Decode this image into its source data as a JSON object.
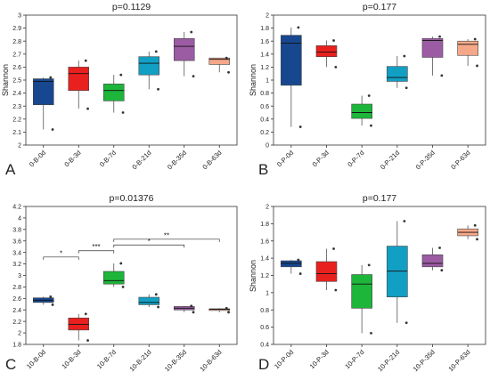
{
  "chart_data": [
    {
      "panel": "A",
      "type": "box",
      "title": "p=0.1129",
      "ylabel": "Shannon",
      "ylim": [
        2,
        3
      ],
      "yticks": [
        "2",
        "2.1",
        "2.2",
        "2.3",
        "2.4",
        "2.5",
        "2.6",
        "2.7",
        "2.8",
        "2.9",
        "3"
      ],
      "categories": [
        "0-B-0d",
        "0-B-3d",
        "0-B-7d",
        "0-B-21d",
        "0-B-35d",
        "0-B-63d"
      ],
      "colors": [
        "#17478F",
        "#E8211E",
        "#1DB53A",
        "#129FC4",
        "#9B5CA4",
        "#F5A889"
      ],
      "boxes": [
        {
          "min": 2.12,
          "q1": 2.31,
          "median": 2.49,
          "q3": 2.51,
          "max": 2.52
        },
        {
          "min": 2.28,
          "q1": 2.42,
          "median": 2.55,
          "q3": 2.6,
          "max": 2.65
        },
        {
          "min": 2.25,
          "q1": 2.34,
          "median": 2.42,
          "q3": 2.47,
          "max": 2.54
        },
        {
          "min": 2.43,
          "q1": 2.54,
          "median": 2.63,
          "q3": 2.68,
          "max": 2.72
        },
        {
          "min": 2.53,
          "q1": 2.65,
          "median": 2.76,
          "q3": 2.82,
          "max": 2.87
        },
        {
          "min": 2.56,
          "q1": 2.62,
          "median": 2.66,
          "q3": 2.67,
          "max": 2.67
        }
      ],
      "significance": []
    },
    {
      "panel": "B",
      "type": "box",
      "title": "p=0.177",
      "ylabel": "Shannon",
      "ylim": [
        0,
        2
      ],
      "yticks": [
        "0",
        "0.2",
        "0.4",
        "0.6",
        "0.8",
        "1",
        "1.2",
        "1.4",
        "1.6",
        "1.8",
        "2"
      ],
      "categories": [
        "0-P-0d",
        "0-P-3d",
        "0-P-7d",
        "0-P-21d",
        "0-P-35d",
        "0-P-63d"
      ],
      "colors": [
        "#17478F",
        "#E8211E",
        "#1DB53A",
        "#129FC4",
        "#9B5CA4",
        "#F5A889"
      ],
      "boxes": [
        {
          "min": 0.28,
          "q1": 0.92,
          "median": 1.57,
          "q3": 1.69,
          "max": 1.81
        },
        {
          "min": 1.2,
          "q1": 1.36,
          "median": 1.43,
          "q3": 1.53,
          "max": 1.61
        },
        {
          "min": 0.3,
          "q1": 0.41,
          "median": 0.5,
          "q3": 0.63,
          "max": 0.76
        },
        {
          "min": 0.88,
          "q1": 0.98,
          "median": 1.04,
          "q3": 1.21,
          "max": 1.37
        },
        {
          "min": 1.07,
          "q1": 1.35,
          "median": 1.61,
          "q3": 1.64,
          "max": 1.67
        },
        {
          "min": 1.22,
          "q1": 1.38,
          "median": 1.55,
          "q3": 1.6,
          "max": 1.63
        }
      ],
      "significance": []
    },
    {
      "panel": "C",
      "type": "box",
      "title": "p=0.01376",
      "ylabel": "",
      "ylim": [
        1.8,
        4.2
      ],
      "yticks": [
        "1.8",
        "2",
        "2.2",
        "2.4",
        "2.6",
        "2.8",
        "3",
        "3.2",
        "3.4",
        "3.6",
        "3.8",
        "4",
        "4.2"
      ],
      "categories": [
        "10-B-0d",
        "10-B-3d",
        "10-B-7d",
        "10-B-21d",
        "10-B-35d",
        "10-B-63d"
      ],
      "colors": [
        "#17478F",
        "#E8211E",
        "#1DB53A",
        "#129FC4",
        "#9B5CA4",
        "#F5A889"
      ],
      "boxes": [
        {
          "min": 2.49,
          "q1": 2.53,
          "median": 2.57,
          "q3": 2.61,
          "max": 2.63
        },
        {
          "min": 1.87,
          "q1": 2.05,
          "median": 2.15,
          "q3": 2.26,
          "max": 2.33
        },
        {
          "min": 2.8,
          "q1": 2.85,
          "median": 2.91,
          "q3": 3.07,
          "max": 3.21
        },
        {
          "min": 2.45,
          "q1": 2.49,
          "median": 2.53,
          "q3": 2.62,
          "max": 2.67
        },
        {
          "min": 2.36,
          "q1": 2.4,
          "median": 2.43,
          "q3": 2.46,
          "max": 2.47
        },
        {
          "min": 2.36,
          "q1": 2.39,
          "median": 2.41,
          "q3": 2.42,
          "max": 2.43
        }
      ],
      "significance": [
        {
          "from": 0,
          "to": 1,
          "y": 3.32,
          "label": "*"
        },
        {
          "from": 1,
          "to": 2,
          "y": 3.43,
          "label": "***"
        },
        {
          "from": 2,
          "to": 4,
          "y": 3.53,
          "label": "*"
        },
        {
          "from": 2,
          "to": 5,
          "y": 3.63,
          "label": "**"
        }
      ]
    },
    {
      "panel": "D",
      "type": "box",
      "title": "p=0.177",
      "ylabel": "Shannon",
      "ylim": [
        0.4,
        2
      ],
      "yticks": [
        "0.4",
        "0.6",
        "0.8",
        "1",
        "1.2",
        "1.4",
        "1.6",
        "1.8",
        "2"
      ],
      "categories": [
        "10-P-0d",
        "10-P-3d",
        "10-P-7d",
        "10-P-21d",
        "10-P-35d",
        "10-P-63d"
      ],
      "colors": [
        "#17478F",
        "#E8211E",
        "#1DB53A",
        "#129FC4",
        "#9B5CA4",
        "#F5A889"
      ],
      "boxes": [
        {
          "min": 1.22,
          "q1": 1.3,
          "median": 1.34,
          "q3": 1.37,
          "max": 1.38
        },
        {
          "min": 1.03,
          "q1": 1.13,
          "median": 1.22,
          "q3": 1.36,
          "max": 1.51
        },
        {
          "min": 0.53,
          "q1": 0.82,
          "median": 1.1,
          "q3": 1.21,
          "max": 1.32
        },
        {
          "min": 0.65,
          "q1": 0.95,
          "median": 1.25,
          "q3": 1.54,
          "max": 1.83
        },
        {
          "min": 1.26,
          "q1": 1.3,
          "median": 1.34,
          "q3": 1.44,
          "max": 1.52
        },
        {
          "min": 1.62,
          "q1": 1.66,
          "median": 1.7,
          "q3": 1.74,
          "max": 1.78
        }
      ],
      "significance": []
    }
  ]
}
